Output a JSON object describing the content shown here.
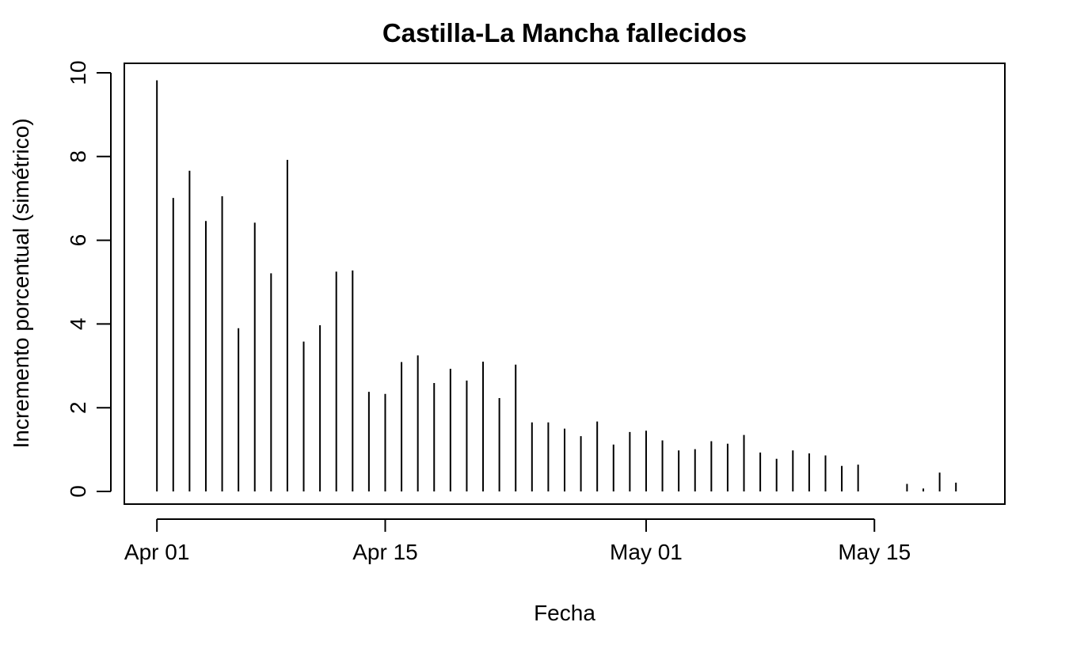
{
  "chart_data": {
    "type": "bar",
    "title": "Castilla-La Mancha fallecidos",
    "xlabel": "Fecha",
    "ylabel": "Incremento porcentual (simétrico)",
    "ylim": [
      0,
      10
    ],
    "yticks": [
      0,
      2,
      4,
      6,
      8,
      10
    ],
    "xlim": [
      "2020-03-30",
      "2020-05-23"
    ],
    "xticks": [
      {
        "date": "2020-04-01",
        "label": "Apr 01"
      },
      {
        "date": "2020-04-15",
        "label": "Apr 15"
      },
      {
        "date": "2020-05-01",
        "label": "May 01"
      },
      {
        "date": "2020-05-15",
        "label": "May 15"
      }
    ],
    "grid": false,
    "color": "#000000",
    "dates": [
      "2020-04-01",
      "2020-04-02",
      "2020-04-03",
      "2020-04-04",
      "2020-04-05",
      "2020-04-06",
      "2020-04-07",
      "2020-04-08",
      "2020-04-09",
      "2020-04-10",
      "2020-04-11",
      "2020-04-12",
      "2020-04-13",
      "2020-04-14",
      "2020-04-15",
      "2020-04-16",
      "2020-04-17",
      "2020-04-18",
      "2020-04-19",
      "2020-04-20",
      "2020-04-21",
      "2020-04-22",
      "2020-04-23",
      "2020-04-24",
      "2020-04-25",
      "2020-04-26",
      "2020-04-27",
      "2020-04-28",
      "2020-04-29",
      "2020-04-30",
      "2020-05-01",
      "2020-05-02",
      "2020-05-03",
      "2020-05-04",
      "2020-05-05",
      "2020-05-06",
      "2020-05-07",
      "2020-05-08",
      "2020-05-09",
      "2020-05-10",
      "2020-05-11",
      "2020-05-12",
      "2020-05-13",
      "2020-05-14",
      "2020-05-15",
      "2020-05-16",
      "2020-05-17",
      "2020-05-18",
      "2020-05-19",
      "2020-05-20"
    ],
    "values": [
      9.82,
      7.01,
      7.66,
      6.46,
      7.05,
      3.9,
      6.42,
      5.21,
      7.92,
      3.58,
      3.97,
      5.25,
      5.28,
      2.38,
      2.33,
      3.09,
      3.25,
      2.59,
      2.93,
      2.65,
      3.1,
      2.23,
      3.03,
      1.65,
      1.65,
      1.5,
      1.32,
      1.67,
      1.12,
      1.42,
      1.45,
      1.22,
      0.98,
      1.01,
      1.2,
      1.14,
      1.35,
      0.93,
      0.78,
      0.98,
      0.91,
      0.86,
      0.61,
      0.64,
      null,
      null,
      0.18,
      0.07,
      0.45,
      0.21
    ]
  }
}
